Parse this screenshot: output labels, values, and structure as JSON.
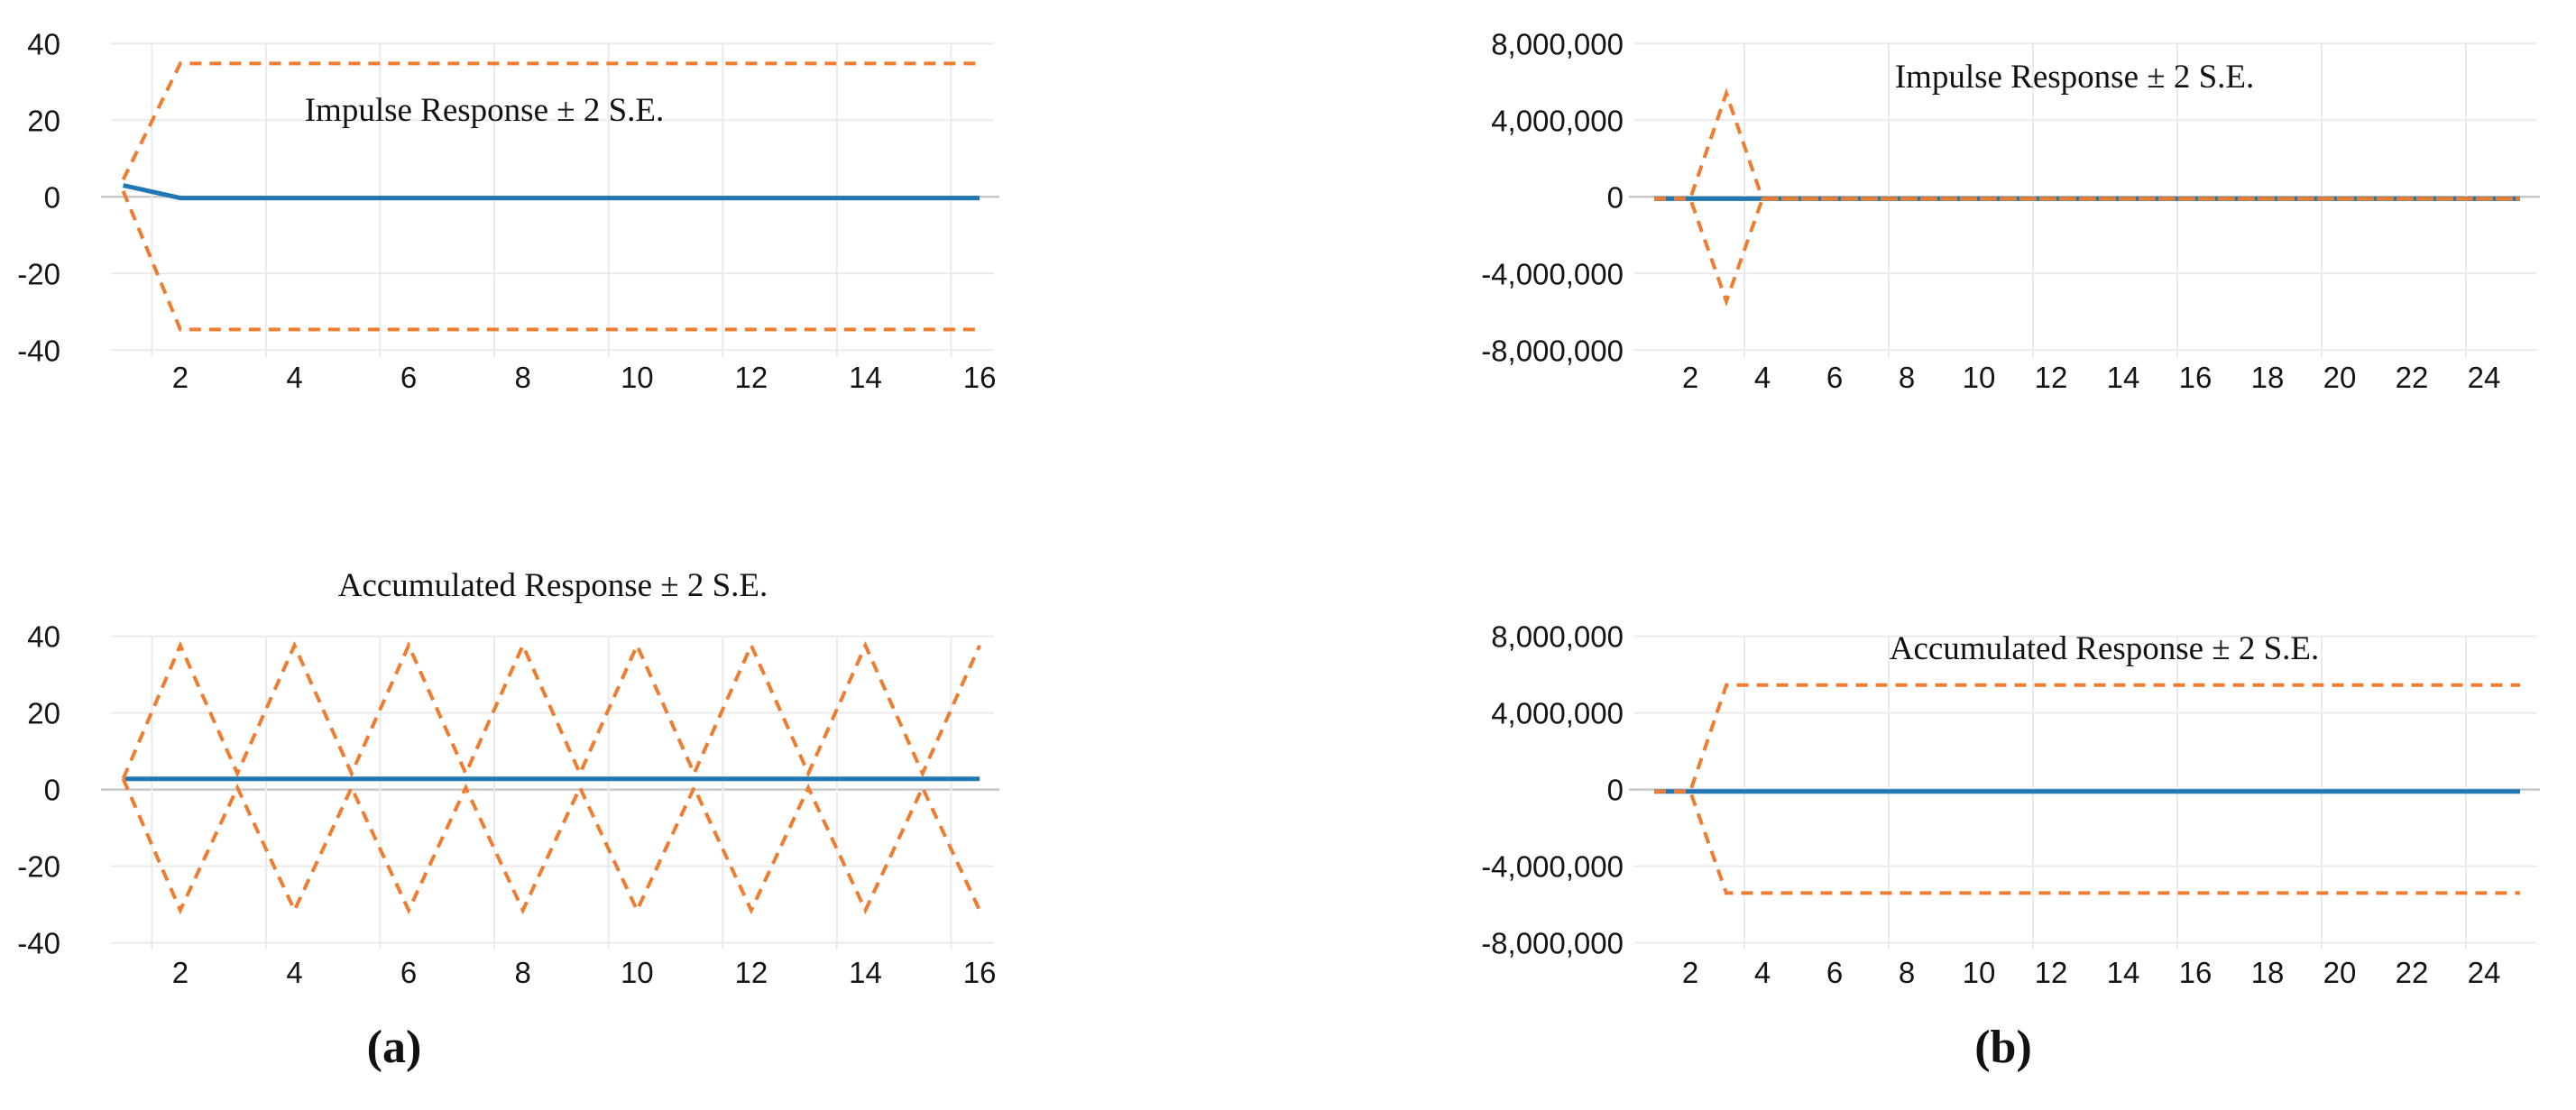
{
  "figure": {
    "caption_a": "(a)",
    "caption_b": "(b)"
  },
  "colors": {
    "response_line": "#1F77B4",
    "band_line": "#EE7D2F",
    "gridline": "#EAEAEA",
    "zero_axis": "#C7C7C7",
    "text": "#151515",
    "background": "#FFFFFF"
  },
  "chart_data": [
    {
      "id": "impulse_a",
      "type": "line",
      "title": "Impulse Response ± 2 S.E.",
      "x": [
        1,
        2,
        3,
        4,
        5,
        6,
        7,
        8,
        9,
        10,
        11,
        12,
        13,
        14,
        15,
        16
      ],
      "x_ticks": [
        2,
        4,
        6,
        8,
        10,
        12,
        14,
        16
      ],
      "x_gridlines": [
        1.5,
        3.5,
        5.5,
        7.5,
        9.5,
        11.5,
        13.5,
        15.5
      ],
      "ylim": [
        -40,
        40
      ],
      "grid": true,
      "legend": "none",
      "y_ticks": [
        {
          "label": "40",
          "value": 40
        },
        {
          "label": "20",
          "value": 20
        },
        {
          "label": "0",
          "value": 0
        },
        {
          "label": "-20",
          "value": -20
        },
        {
          "label": "-40",
          "value": -40
        }
      ],
      "series": [
        {
          "name": "Impulse Response",
          "line_style": "solid",
          "color": "#1F77B4",
          "values": [
            3,
            -0.3,
            -0.3,
            -0.3,
            -0.3,
            -0.3,
            -0.3,
            -0.3,
            -0.3,
            -0.3,
            -0.3,
            -0.3,
            -0.3,
            -0.3,
            -0.3,
            -0.3
          ]
        },
        {
          "name": "+2 S.E.",
          "line_style": "dashed",
          "color": "#EE7D2F",
          "values": [
            4.5,
            34.8,
            34.8,
            34.8,
            34.8,
            34.8,
            34.8,
            34.8,
            34.8,
            34.8,
            34.8,
            34.8,
            34.8,
            34.8,
            34.8,
            34.8
          ]
        },
        {
          "name": "-2 S.E.",
          "line_style": "dashed",
          "color": "#EE7D2F",
          "values": [
            1.5,
            -34.6,
            -34.6,
            -34.6,
            -34.6,
            -34.6,
            -34.6,
            -34.6,
            -34.6,
            -34.6,
            -34.6,
            -34.6,
            -34.6,
            -34.6,
            -34.6,
            -34.6
          ]
        }
      ]
    },
    {
      "id": "impulse_b",
      "type": "line",
      "title": "Impulse Response ± 2 S.E.",
      "x": [
        1,
        2,
        3,
        4,
        5,
        6,
        7,
        8,
        9,
        10,
        11,
        12,
        13,
        14,
        15,
        16,
        17,
        18,
        19,
        20,
        21,
        22,
        23,
        24,
        25
      ],
      "x_ticks": [
        2,
        4,
        6,
        8,
        10,
        12,
        14,
        16,
        18,
        20,
        22,
        24
      ],
      "x_gridlines": [
        3.5,
        7.5,
        11.5,
        15.5,
        19.5,
        23.5
      ],
      "ylim": [
        -8000000,
        8000000
      ],
      "grid": true,
      "legend": "none",
      "y_ticks": [
        {
          "label": "8,000,000",
          "value": 8000000
        },
        {
          "label": "4,000,000",
          "value": 4000000
        },
        {
          "label": "0",
          "value": 0
        },
        {
          "label": "-4,000,000",
          "value": -4000000
        },
        {
          "label": "-8,000,000",
          "value": -8000000
        }
      ],
      "series": [
        {
          "name": "Impulse Response",
          "line_style": "solid",
          "color": "#1F77B4",
          "values": [
            -100000,
            -100000,
            -100000,
            -100000,
            -100000,
            -100000,
            -100000,
            -100000,
            -100000,
            -100000,
            -100000,
            -100000,
            -100000,
            -100000,
            -100000,
            -100000,
            -100000,
            -100000,
            -100000,
            -100000,
            -100000,
            -100000,
            -100000,
            -100000,
            -100000
          ]
        },
        {
          "name": "+2 S.E.",
          "line_style": "dashed",
          "color": "#EE7D2F",
          "values": [
            -100000,
            -100000,
            5400000,
            -100000,
            -100000,
            -100000,
            -100000,
            -100000,
            -100000,
            -100000,
            -100000,
            -100000,
            -100000,
            -100000,
            -100000,
            -100000,
            -100000,
            -100000,
            -100000,
            -100000,
            -100000,
            -100000,
            -100000,
            -100000,
            -100000
          ]
        },
        {
          "name": "-2 S.E.",
          "line_style": "dashed",
          "color": "#EE7D2F",
          "values": [
            -100000,
            -100000,
            -5450000,
            -100000,
            -100000,
            -100000,
            -100000,
            -100000,
            -100000,
            -100000,
            -100000,
            -100000,
            -100000,
            -100000,
            -100000,
            -100000,
            -100000,
            -100000,
            -100000,
            -100000,
            -100000,
            -100000,
            -100000,
            -100000,
            -100000
          ]
        }
      ]
    },
    {
      "id": "accum_a",
      "type": "line",
      "title": "Accumulated Response ± 2 S.E.",
      "x": [
        1,
        2,
        3,
        4,
        5,
        6,
        7,
        8,
        9,
        10,
        11,
        12,
        13,
        14,
        15,
        16
      ],
      "x_ticks": [
        2,
        4,
        6,
        8,
        10,
        12,
        14,
        16
      ],
      "x_gridlines": [
        1.5,
        3.5,
        5.5,
        7.5,
        9.5,
        11.5,
        13.5,
        15.5
      ],
      "ylim": [
        -40,
        40
      ],
      "grid": true,
      "legend": "none",
      "y_ticks": [
        {
          "label": "40",
          "value": 40
        },
        {
          "label": "20",
          "value": 20
        },
        {
          "label": "0",
          "value": 0
        },
        {
          "label": "-20",
          "value": -20
        },
        {
          "label": "-40",
          "value": -40
        }
      ],
      "series": [
        {
          "name": "Accumulated Response",
          "line_style": "solid",
          "color": "#1F77B4",
          "values": [
            2.8,
            2.8,
            2.8,
            2.8,
            2.8,
            2.8,
            2.8,
            2.8,
            2.8,
            2.8,
            2.8,
            2.8,
            2.8,
            2.8,
            2.8,
            2.8
          ]
        },
        {
          "name": "+2 S.E.",
          "line_style": "dashed",
          "color": "#EE7D2F",
          "values": [
            2.8,
            37.6,
            4.2,
            37.6,
            4.2,
            37.6,
            4.2,
            37.6,
            4.2,
            37.6,
            4.2,
            37.6,
            4.2,
            37.6,
            4.2,
            37.6
          ]
        },
        {
          "name": "-2 S.E.",
          "line_style": "dashed",
          "color": "#EE7D2F",
          "values": [
            2.8,
            -31.5,
            0.5,
            -31.5,
            0.5,
            -31.5,
            0.5,
            -31.5,
            0.5,
            -31.5,
            0.5,
            -31.5,
            0.5,
            -31.5,
            0.5,
            -31.5
          ]
        }
      ]
    },
    {
      "id": "accum_b",
      "type": "line",
      "title": "Accumulated Response ± 2 S.E.",
      "x": [
        1,
        2,
        3,
        4,
        5,
        6,
        7,
        8,
        9,
        10,
        11,
        12,
        13,
        14,
        15,
        16,
        17,
        18,
        19,
        20,
        21,
        22,
        23,
        24,
        25
      ],
      "x_ticks": [
        2,
        4,
        6,
        8,
        10,
        12,
        14,
        16,
        18,
        20,
        22,
        24
      ],
      "x_gridlines": [
        3.5,
        7.5,
        11.5,
        15.5,
        19.5,
        23.5
      ],
      "ylim": [
        -8000000,
        8000000
      ],
      "grid": true,
      "legend": "none",
      "y_ticks": [
        {
          "label": "8,000,000",
          "value": 8000000
        },
        {
          "label": "4,000,000",
          "value": 4000000
        },
        {
          "label": "0",
          "value": 0
        },
        {
          "label": "-4,000,000",
          "value": -4000000
        },
        {
          "label": "-8,000,000",
          "value": -8000000
        }
      ],
      "series": [
        {
          "name": "Accumulated Response",
          "line_style": "solid",
          "color": "#1F77B4",
          "values": [
            -100000,
            -100000,
            -100000,
            -100000,
            -100000,
            -100000,
            -100000,
            -100000,
            -100000,
            -100000,
            -100000,
            -100000,
            -100000,
            -100000,
            -100000,
            -100000,
            -100000,
            -100000,
            -100000,
            -100000,
            -100000,
            -100000,
            -100000,
            -100000,
            -100000
          ]
        },
        {
          "name": "+2 S.E.",
          "line_style": "dashed",
          "color": "#EE7D2F",
          "values": [
            -100000,
            -100000,
            5450000,
            5450000,
            5450000,
            5450000,
            5450000,
            5450000,
            5450000,
            5450000,
            5450000,
            5450000,
            5450000,
            5450000,
            5450000,
            5450000,
            5450000,
            5450000,
            5450000,
            5450000,
            5450000,
            5450000,
            5450000,
            5450000,
            5450000
          ]
        },
        {
          "name": "-2 S.E.",
          "line_style": "dashed",
          "color": "#EE7D2F",
          "values": [
            -100000,
            -100000,
            -5400000,
            -5400000,
            -5400000,
            -5400000,
            -5400000,
            -5400000,
            -5400000,
            -5400000,
            -5400000,
            -5400000,
            -5400000,
            -5400000,
            -5400000,
            -5400000,
            -5400000,
            -5400000,
            -5400000,
            -5400000,
            -5400000,
            -5400000,
            -5400000,
            -5400000,
            -5400000
          ]
        }
      ]
    }
  ]
}
